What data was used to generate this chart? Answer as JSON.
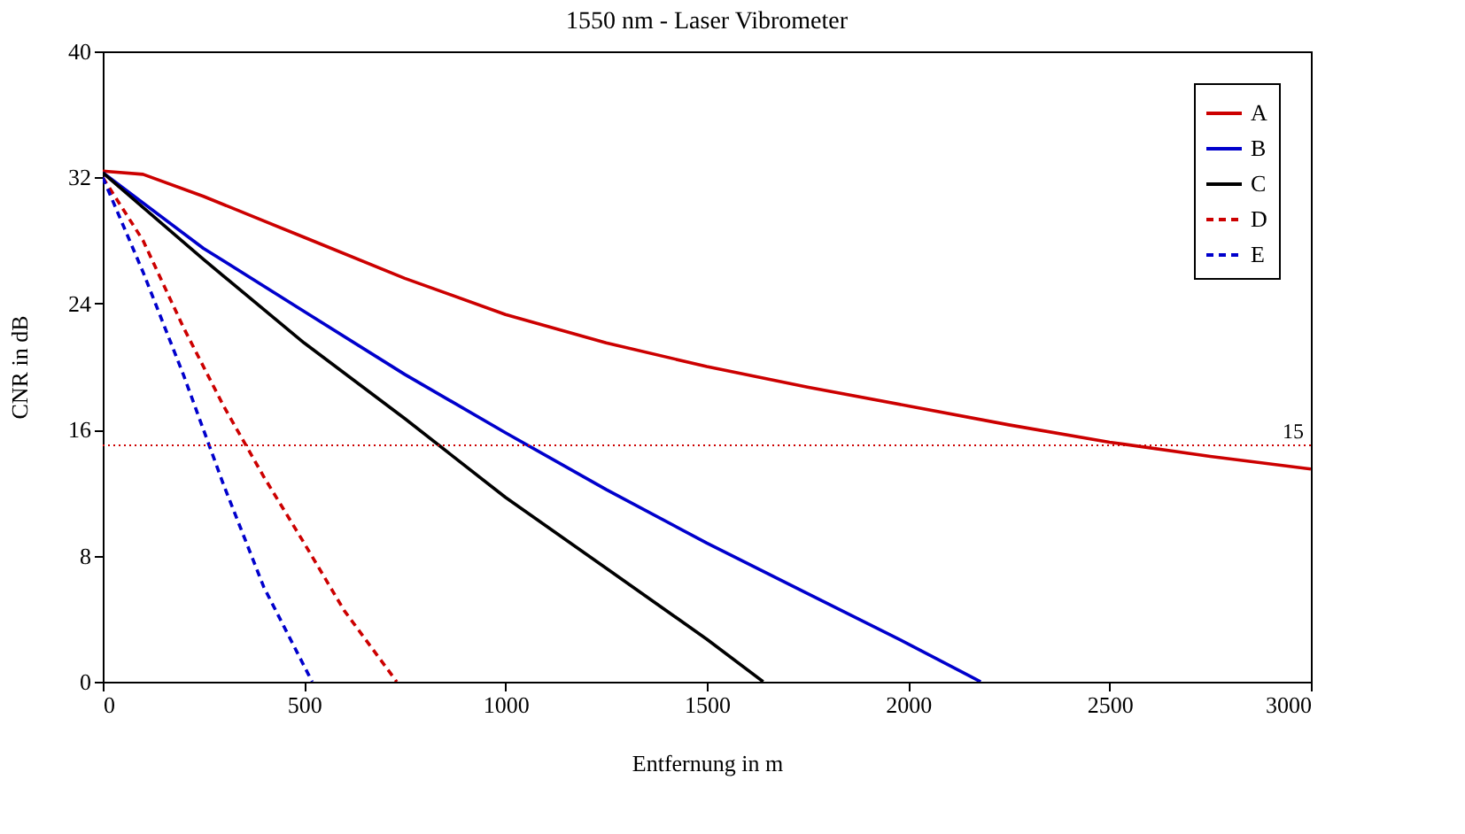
{
  "chart_data": {
    "type": "line",
    "title": "1550 nm - Laser Vibrometer",
    "xlabel": "Entfernung in m",
    "ylabel": "CNR in dB",
    "xlim": [
      0,
      3000
    ],
    "ylim": [
      0,
      40
    ],
    "xticks": [
      0,
      500,
      1000,
      1500,
      2000,
      2500,
      3000
    ],
    "yticks": [
      0,
      8,
      16,
      24,
      32,
      40
    ],
    "grid": false,
    "legend": "top right",
    "series": [
      {
        "name": "A",
        "color": "#cc0000",
        "line_style": "solid",
        "x": [
          0,
          100,
          250,
          500,
          750,
          1000,
          1250,
          1500,
          1750,
          2000,
          2250,
          2500,
          2750,
          3000
        ],
        "values": [
          32.4,
          32.2,
          30.8,
          28.2,
          25.6,
          23.3,
          21.5,
          20,
          18.7,
          17.5,
          16.3,
          15.2,
          14.3,
          13.5
        ]
      },
      {
        "name": "B",
        "color": "#0000cc",
        "line_style": "solid",
        "x": [
          0,
          250,
          500,
          750,
          1000,
          1250,
          1500,
          1750,
          2000,
          2180
        ],
        "values": [
          32.3,
          27.5,
          23.5,
          19.5,
          15.8,
          12.2,
          8.8,
          5.6,
          2.4,
          0
        ]
      },
      {
        "name": "C",
        "color": "#000000",
        "line_style": "solid",
        "x": [
          0,
          250,
          500,
          750,
          1000,
          1250,
          1500,
          1640
        ],
        "values": [
          32.3,
          26.8,
          21.5,
          16.7,
          11.7,
          7.2,
          2.7,
          0
        ]
      },
      {
        "name": "D",
        "color": "#cc0000",
        "line_style": "dashed",
        "x": [
          0,
          100,
          200,
          300,
          400,
          500,
          600,
          730
        ],
        "values": [
          32,
          28,
          22.5,
          17.5,
          13,
          8.8,
          4.5,
          0
        ]
      },
      {
        "name": "E",
        "color": "#0000cc",
        "line_style": "dashed",
        "x": [
          0,
          100,
          200,
          300,
          400,
          500,
          520
        ],
        "values": [
          32,
          26,
          19.5,
          12.5,
          6,
          1,
          0
        ]
      }
    ],
    "ref_lines": [
      {
        "axis": "y",
        "value": 15,
        "label": "15",
        "color": "#cc0000",
        "line_style": "dotted"
      }
    ]
  }
}
